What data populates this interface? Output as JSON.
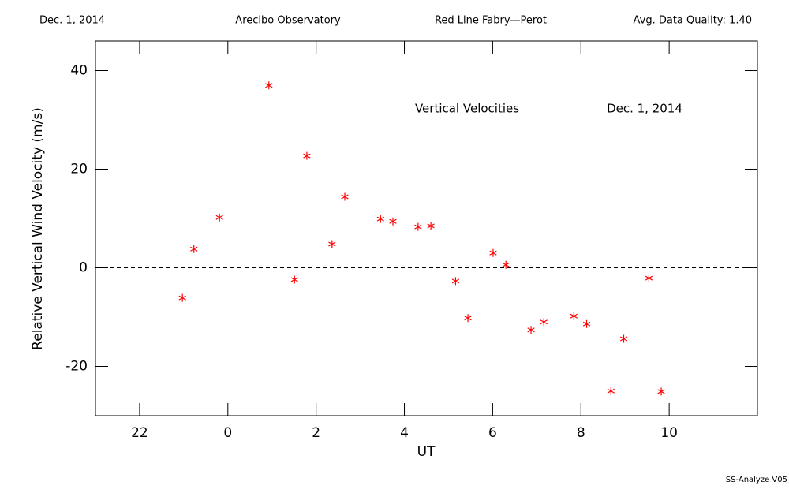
{
  "chart_data": {
    "type": "scatter",
    "header": [
      "Dec. 1, 2014",
      "Arecibo Observatory",
      "Red Line Fabry—Perot",
      "Avg. Data Quality: 1.40"
    ],
    "annotations": [
      "Vertical Velocities",
      "Dec. 1, 2014"
    ],
    "footer": "SS-Analyze V05",
    "xlabel": "UT",
    "ylabel": "Relative Vertical Wind Velocity (m/s)",
    "color": "#ff0000",
    "x": [
      22.97,
      23.23,
      23.81,
      24.93,
      25.51,
      25.79,
      26.36,
      26.65,
      27.46,
      27.74,
      28.31,
      28.6,
      29.16,
      29.44,
      30.01,
      30.3,
      30.87,
      31.16,
      31.84,
      32.13,
      32.68,
      32.97,
      33.54,
      33.82
    ],
    "values": [
      -6.1,
      3.8,
      10.2,
      37.0,
      -2.4,
      22.7,
      4.8,
      14.4,
      9.9,
      9.4,
      8.3,
      8.5,
      -2.7,
      -10.2,
      3.0,
      0.6,
      -12.6,
      -11.0,
      -9.8,
      -11.4,
      -25.0,
      -14.4,
      -2.1,
      -25.1
    ],
    "xlim": [
      21,
      36
    ],
    "xticks": [
      22,
      {
        "value": 24,
        "label": "0"
      },
      {
        "value": 26,
        "label": "2"
      },
      {
        "value": 28,
        "label": "4"
      },
      {
        "value": 30,
        "label": "6"
      },
      {
        "value": 32,
        "label": "8"
      },
      {
        "value": 34,
        "label": "10"
      }
    ],
    "ylim": [
      -30,
      46
    ],
    "yticks": [
      -20,
      0,
      20,
      40
    ],
    "reference_line": 0
  }
}
